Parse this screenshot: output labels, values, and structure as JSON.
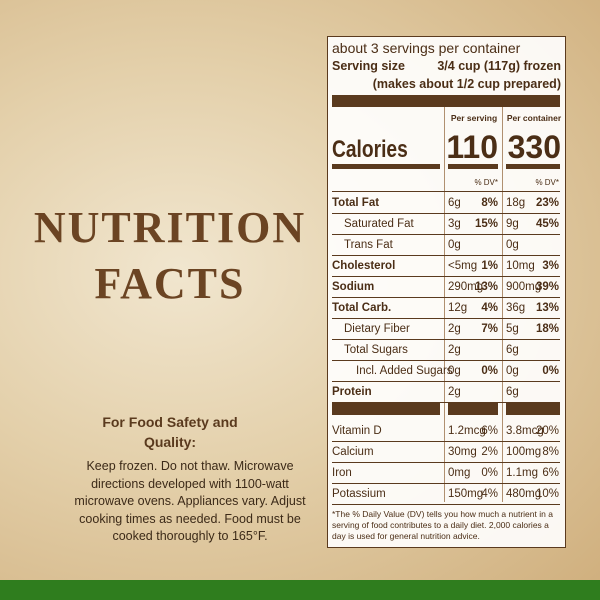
{
  "heading": "NUTRITION FACTS",
  "safety": {
    "title": "For Food Safety and Quality:",
    "body": "Keep frozen. Do not thaw. Microwave directions developed with 1100-watt microwave ovens. Appliances vary. Adjust cooking times as needed. Food must be cooked thoroughly to 165°F."
  },
  "label": {
    "servings": "about 3 servings per container",
    "serving_size_label": "Serving size",
    "serving_size": "3/4 cup (117g) frozen",
    "serving_size_note": "(makes about 1/2 cup prepared)",
    "col_headers": [
      "Per serving",
      "Per container"
    ],
    "calories_label": "Calories",
    "calories": [
      110,
      330
    ],
    "dv_header": "% DV*",
    "nutrients": [
      {
        "name": "Total Fat",
        "bold": true,
        "indent": 0,
        "per_serving": "6g",
        "dv_serving": "8%",
        "per_container": "18g",
        "dv_container": "23%"
      },
      {
        "name": "Saturated Fat",
        "bold": false,
        "indent": 1,
        "per_serving": "3g",
        "dv_serving": "15%",
        "per_container": "9g",
        "dv_container": "45%"
      },
      {
        "name": "Trans Fat",
        "bold": false,
        "indent": 1,
        "per_serving": "0g",
        "per_container": "0g"
      },
      {
        "name": "Cholesterol",
        "bold": true,
        "indent": 0,
        "per_serving": "<5mg",
        "dv_serving": "1%",
        "per_container": "10mg",
        "dv_container": "3%"
      },
      {
        "name": "Sodium",
        "bold": true,
        "indent": 0,
        "per_serving": "290mg",
        "dv_serving": "13%",
        "per_container": "900mg",
        "dv_container": "39%"
      },
      {
        "name": "Total Carb.",
        "bold": true,
        "indent": 0,
        "per_serving": "12g",
        "dv_serving": "4%",
        "per_container": "36g",
        "dv_container": "13%"
      },
      {
        "name": "Dietary Fiber",
        "bold": false,
        "indent": 1,
        "per_serving": "2g",
        "dv_serving": "7%",
        "per_container": "5g",
        "dv_container": "18%"
      },
      {
        "name": "Total Sugars",
        "bold": false,
        "indent": 1,
        "per_serving": "2g",
        "per_container": "6g"
      },
      {
        "name": "Incl. Added Sugars",
        "bold": false,
        "indent": 2,
        "per_serving": "0g",
        "dv_serving": "0%",
        "per_container": "0g",
        "dv_container": "0%"
      },
      {
        "name": "Protein",
        "bold": true,
        "indent": 0,
        "per_serving": "2g",
        "per_container": "6g"
      }
    ],
    "vitamins": [
      {
        "name": "Vitamin D",
        "per_serving": "1.2mcg",
        "dv_serving": "6%",
        "per_container": "3.8mcg",
        "dv_container": "20%"
      },
      {
        "name": "Calcium",
        "per_serving": "30mg",
        "dv_serving": "2%",
        "per_container": "100mg",
        "dv_container": "8%"
      },
      {
        "name": "Iron",
        "per_serving": "0mg",
        "dv_serving": "0%",
        "per_container": "1.1mg",
        "dv_container": "6%"
      },
      {
        "name": "Potassium",
        "per_serving": "150mg",
        "dv_serving": "4%",
        "per_container": "480mg",
        "dv_container": "10%"
      }
    ],
    "footnote": "*The % Daily Value (DV) tells you how much a nutrient in a serving of food contributes to a daily diet. 2,000 calories a day is used for general nutrition advice."
  }
}
